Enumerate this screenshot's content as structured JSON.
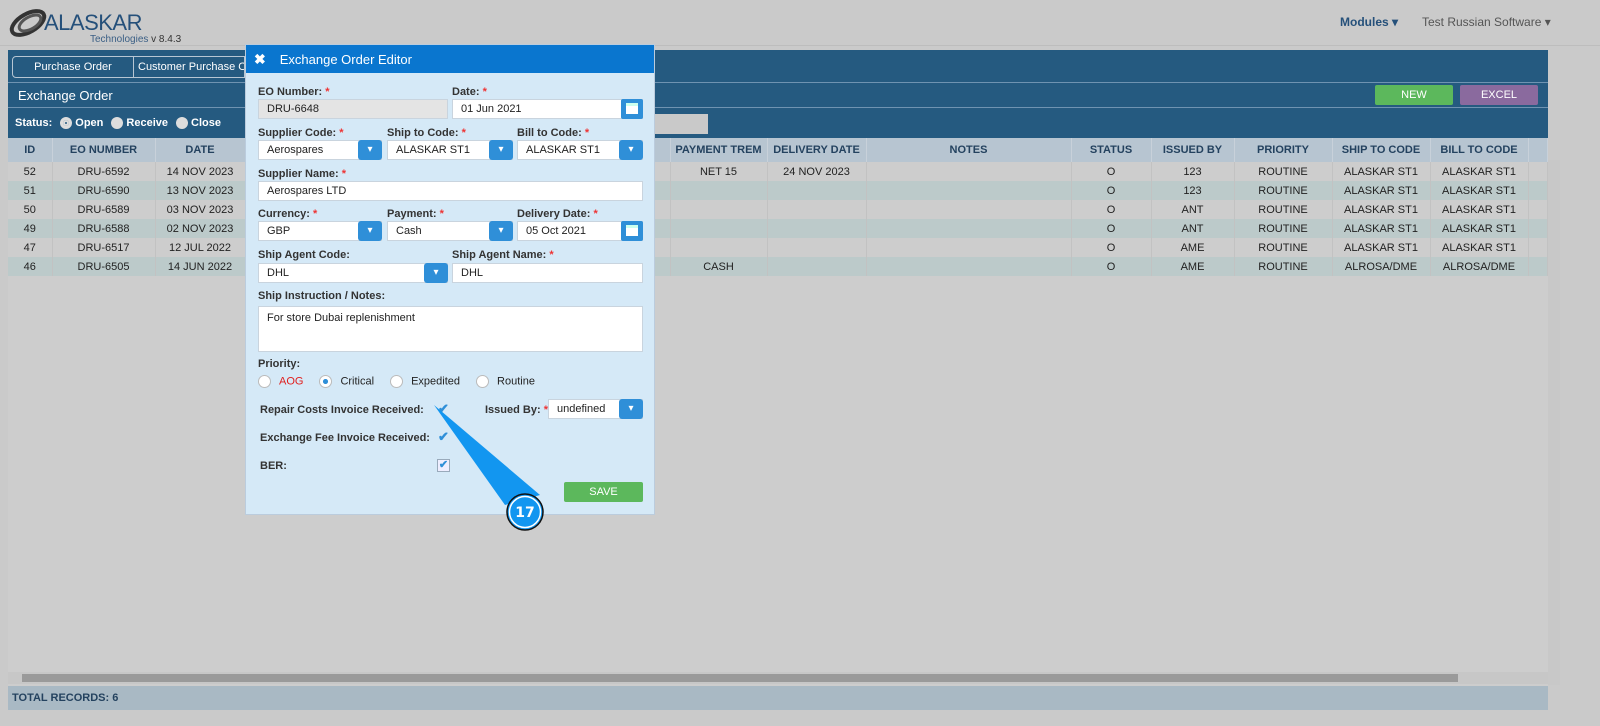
{
  "app": {
    "logo_text": "ALASKAR",
    "logo_sub": "Technologies",
    "version": "v 8.4.3",
    "modules": "Modules",
    "user": "Test Russian Software"
  },
  "tabs": [
    "Purchase Order",
    "Customer Purchase Order"
  ],
  "section": {
    "title": "Exchange Order",
    "new": "NEW",
    "excel": "EXCEL"
  },
  "status": {
    "label": "Status:",
    "options": [
      "Open",
      "Receive",
      "Close"
    ],
    "selected": "Open"
  },
  "table": {
    "columns": [
      "ID",
      "EO NUMBER",
      "DATE",
      "",
      "PAYMENT TREM",
      "DELIVERY DATE",
      "NOTES",
      "STATUS",
      "ISSUED BY",
      "PRIORITY",
      "SHIP TO CODE",
      "BILL TO CODE"
    ],
    "rows": [
      [
        "52",
        "DRU-6592",
        "14 NOV 2023",
        "",
        "NET 15",
        "24 NOV 2023",
        "",
        "O",
        "123",
        "ROUTINE",
        "ALASKAR ST1",
        "ALASKAR ST1"
      ],
      [
        "51",
        "DRU-6590",
        "13 NOV 2023",
        "",
        "",
        "",
        "",
        "O",
        "123",
        "ROUTINE",
        "ALASKAR ST1",
        "ALASKAR ST1"
      ],
      [
        "50",
        "DRU-6589",
        "03 NOV 2023",
        "",
        "",
        "",
        "",
        "O",
        "ANT",
        "ROUTINE",
        "ALASKAR ST1",
        "ALASKAR ST1"
      ],
      [
        "49",
        "DRU-6588",
        "02 NOV 2023",
        "",
        "",
        "",
        "",
        "O",
        "ANT",
        "ROUTINE",
        "ALASKAR ST1",
        "ALASKAR ST1"
      ],
      [
        "47",
        "DRU-6517",
        "12 JUL 2022",
        "",
        "",
        "",
        "",
        "O",
        "AME",
        "ROUTINE",
        "ALASKAR ST1",
        "ALASKAR ST1"
      ],
      [
        "46",
        "DRU-6505",
        "14 JUN 2022",
        "",
        "CASH",
        "",
        "",
        "O",
        "AME",
        "ROUTINE",
        "ALROSA/DME",
        "ALROSA/DME"
      ]
    ]
  },
  "footer": "TOTAL RECORDS: 6",
  "modal": {
    "title": "Exchange Order Editor",
    "eo_number_label": "EO Number:",
    "eo_number": "DRU-6648",
    "date_label": "Date:",
    "date": "01 Jun 2021",
    "supplier_code_label": "Supplier Code:",
    "supplier_code": "Aerospares",
    "ship_to_label": "Ship to Code:",
    "ship_to": "ALASKAR ST1",
    "bill_to_label": "Bill to Code:",
    "bill_to": "ALASKAR ST1",
    "supplier_name_label": "Supplier Name:",
    "supplier_name": "Aerospares LTD",
    "currency_label": "Currency:",
    "currency": "GBP",
    "payment_label": "Payment:",
    "payment": "Cash",
    "delivery_label": "Delivery Date:",
    "delivery": "05 Oct 2021",
    "agent_code_label": "Ship Agent Code:",
    "agent_code": "DHL",
    "agent_name_label": "Ship Agent Name:",
    "agent_name": "DHL",
    "notes_label": "Ship Instruction / Notes:",
    "notes": "For store Dubai replenishment",
    "priority_label": "Priority:",
    "priorities": [
      "AOG",
      "Critical",
      "Expedited",
      "Routine"
    ],
    "priority_selected": "Critical",
    "repair_label": "Repair Costs Invoice Received:",
    "repair_checked": true,
    "issued_by_label": "Issued By:",
    "issued_by": "undefined",
    "exchange_fee_label": "Exchange Fee Invoice Received:",
    "exchange_fee_checked": true,
    "ber_label": "BER:",
    "ber_checked": true,
    "save": "SAVE",
    "required_mark": "*"
  },
  "callout": {
    "number": "17",
    "color": "#1296f0"
  },
  "colors": {
    "header": "#255a80",
    "modal_title": "#0a76cf",
    "new": "#5cb85c",
    "excel": "#8a6a9e",
    "aog": "#e0201f"
  }
}
